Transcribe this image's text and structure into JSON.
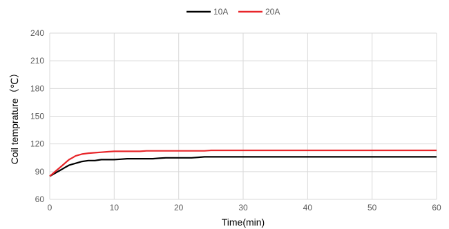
{
  "chart_data": {
    "type": "line",
    "title": "",
    "xlabel": "Time(min)",
    "ylabel": "Coil temprature（℃）",
    "xlim": [
      0,
      60
    ],
    "ylim": [
      60,
      240
    ],
    "x_ticks": [
      "0",
      "10",
      "20",
      "30",
      "40",
      "50",
      "60"
    ],
    "y_ticks": [
      "60",
      "90",
      "120",
      "150",
      "180",
      "210",
      "240"
    ],
    "grid": true,
    "legend_position": "top",
    "series": [
      {
        "name": "10A",
        "color": "#000000",
        "points": [
          [
            0,
            85
          ],
          [
            0.5,
            87
          ],
          [
            1,
            89
          ],
          [
            1.5,
            91
          ],
          [
            2,
            93
          ],
          [
            2.5,
            95
          ],
          [
            3,
            97
          ],
          [
            3.5,
            98
          ],
          [
            4,
            99
          ],
          [
            5,
            101
          ],
          [
            6,
            102
          ],
          [
            7,
            102
          ],
          [
            8,
            103
          ],
          [
            9,
            103
          ],
          [
            10,
            103
          ],
          [
            11,
            103.5
          ],
          [
            12,
            104
          ],
          [
            14,
            104
          ],
          [
            16,
            104
          ],
          [
            17,
            104.5
          ],
          [
            18,
            105
          ],
          [
            20,
            105
          ],
          [
            22,
            105
          ],
          [
            23,
            105.5
          ],
          [
            24,
            106
          ],
          [
            26,
            106
          ],
          [
            30,
            106
          ],
          [
            35,
            106
          ],
          [
            40,
            106
          ],
          [
            45,
            106
          ],
          [
            50,
            106
          ],
          [
            55,
            106
          ],
          [
            60,
            106
          ]
        ]
      },
      {
        "name": "20A",
        "color": "#e8262a",
        "points": [
          [
            0,
            85
          ],
          [
            0.5,
            88
          ],
          [
            1,
            91
          ],
          [
            1.5,
            94
          ],
          [
            2,
            97
          ],
          [
            2.5,
            100
          ],
          [
            3,
            103
          ],
          [
            3.5,
            105
          ],
          [
            4,
            107
          ],
          [
            4.5,
            108
          ],
          [
            5,
            109
          ],
          [
            6,
            110
          ],
          [
            7,
            110.5
          ],
          [
            8,
            111
          ],
          [
            9,
            111.5
          ],
          [
            10,
            112
          ],
          [
            12,
            112
          ],
          [
            14,
            112
          ],
          [
            15,
            112.5
          ],
          [
            16,
            112.5
          ],
          [
            18,
            112.5
          ],
          [
            20,
            112.5
          ],
          [
            22,
            112.5
          ],
          [
            24,
            112.5
          ],
          [
            25,
            113
          ],
          [
            26,
            113
          ],
          [
            30,
            113
          ],
          [
            35,
            113
          ],
          [
            40,
            113
          ],
          [
            45,
            113
          ],
          [
            50,
            113
          ],
          [
            55,
            113
          ],
          [
            60,
            113
          ]
        ]
      }
    ]
  }
}
